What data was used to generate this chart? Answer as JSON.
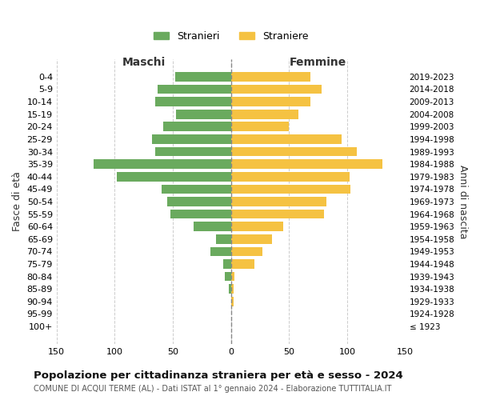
{
  "age_groups": [
    "100+",
    "95-99",
    "90-94",
    "85-89",
    "80-84",
    "75-79",
    "70-74",
    "65-69",
    "60-64",
    "55-59",
    "50-54",
    "45-49",
    "40-44",
    "35-39",
    "30-34",
    "25-29",
    "20-24",
    "15-19",
    "10-14",
    "5-9",
    "0-4"
  ],
  "birth_years": [
    "≤ 1923",
    "1924-1928",
    "1929-1933",
    "1934-1938",
    "1939-1943",
    "1944-1948",
    "1949-1953",
    "1954-1958",
    "1959-1963",
    "1964-1968",
    "1969-1973",
    "1974-1978",
    "1979-1983",
    "1984-1988",
    "1989-1993",
    "1994-1998",
    "1999-2003",
    "2004-2008",
    "2009-2013",
    "2014-2018",
    "2019-2023"
  ],
  "maschi": [
    0,
    0,
    0,
    2,
    5,
    7,
    18,
    13,
    32,
    52,
    55,
    60,
    98,
    118,
    65,
    68,
    58,
    47,
    65,
    63,
    48
  ],
  "femmine": [
    0,
    0,
    2,
    2,
    3,
    20,
    27,
    35,
    45,
    80,
    82,
    103,
    102,
    130,
    108,
    95,
    50,
    58,
    68,
    78,
    68
  ],
  "color_maschi": "#6aaa5e",
  "color_femmine": "#f5c242",
  "title": "Popolazione per cittadinanza straniera per età e sesso - 2024",
  "subtitle": "COMUNE DI ACQUI TERME (AL) - Dati ISTAT al 1° gennaio 2024 - Elaborazione TUTTITALIA.IT",
  "xlabel_left": "Maschi",
  "xlabel_right": "Femmine",
  "ylabel_left": "Fasce di età",
  "ylabel_right": "Anni di nascita",
  "xlim": 150,
  "legend_stranieri": "Stranieri",
  "legend_straniere": "Straniere",
  "background_color": "#ffffff",
  "grid_color": "#cccccc"
}
